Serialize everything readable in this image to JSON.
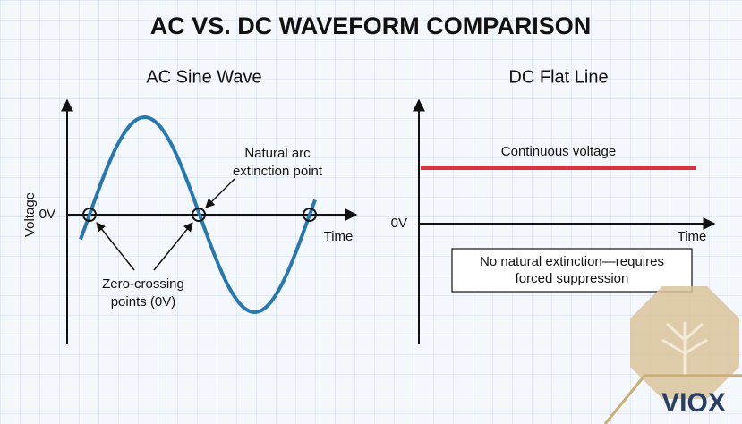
{
  "header": {
    "title": "AC VS. DC WAVEFORM COMPARISON"
  },
  "ac_panel": {
    "title": "AC Sine Wave",
    "y_axis_label": "Voltage",
    "zero_label": "0V",
    "x_axis_label": "Time",
    "annotations": [
      {
        "lines": [
          "Natural arc",
          "extinction point"
        ]
      },
      {
        "lines": [
          "Zero-crossing",
          "points (0V)"
        ]
      }
    ]
  },
  "dc_panel": {
    "title": "DC Flat Line",
    "zero_label": "0V",
    "x_axis_label": "Time",
    "line_label": "Continuous voltage",
    "note": {
      "lines": [
        "No natural extinction—requires",
        "forced suppression"
      ]
    }
  },
  "logo": {
    "text": "VIOX"
  }
}
